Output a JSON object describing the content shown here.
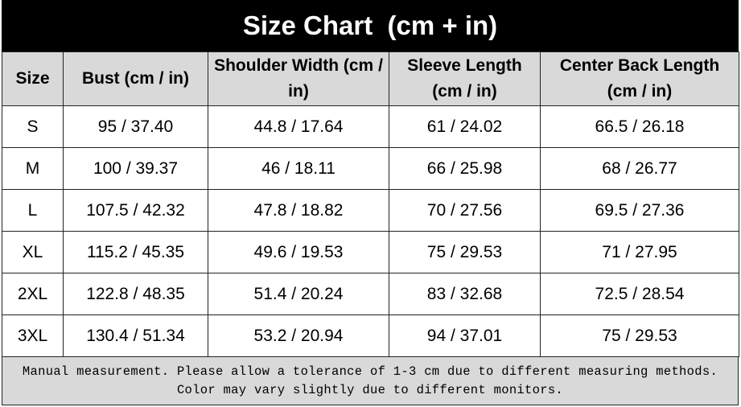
{
  "title": "Size Chart  (cm + in)",
  "table": {
    "header": [
      "Size",
      "Bust (cm / in)",
      "Shoulder Width (cm / in)",
      "Sleeve Length (cm / in)",
      "Center Back Length (cm / in)"
    ],
    "rows": [
      [
        "S",
        "95 / 37.40",
        "44.8 / 17.64",
        "61 / 24.02",
        "66.5 / 26.18"
      ],
      [
        "M",
        "100 / 39.37",
        "46 / 18.11",
        "66 / 25.98",
        "68 / 26.77"
      ],
      [
        "L",
        "107.5 / 42.32",
        "47.8 / 18.82",
        "70 / 27.56",
        "69.5 / 27.36"
      ],
      [
        "XL",
        "115.2 / 45.35",
        "49.6 / 19.53",
        "75 / 29.53",
        "71 / 27.95"
      ],
      [
        "2XL",
        "122.8 / 48.35",
        "51.4 / 20.24",
        "83 / 32.68",
        "72.5 / 28.54"
      ],
      [
        "3XL",
        "130.4 / 51.34",
        "53.2 / 20.94",
        "94 / 37.01",
        "75 / 29.53"
      ]
    ]
  },
  "footer": {
    "lines": [
      "Manual measurement. Please allow a tolerance of 1-3 cm due to different measuring methods.",
      "Color may vary slightly due to different monitors."
    ]
  }
}
